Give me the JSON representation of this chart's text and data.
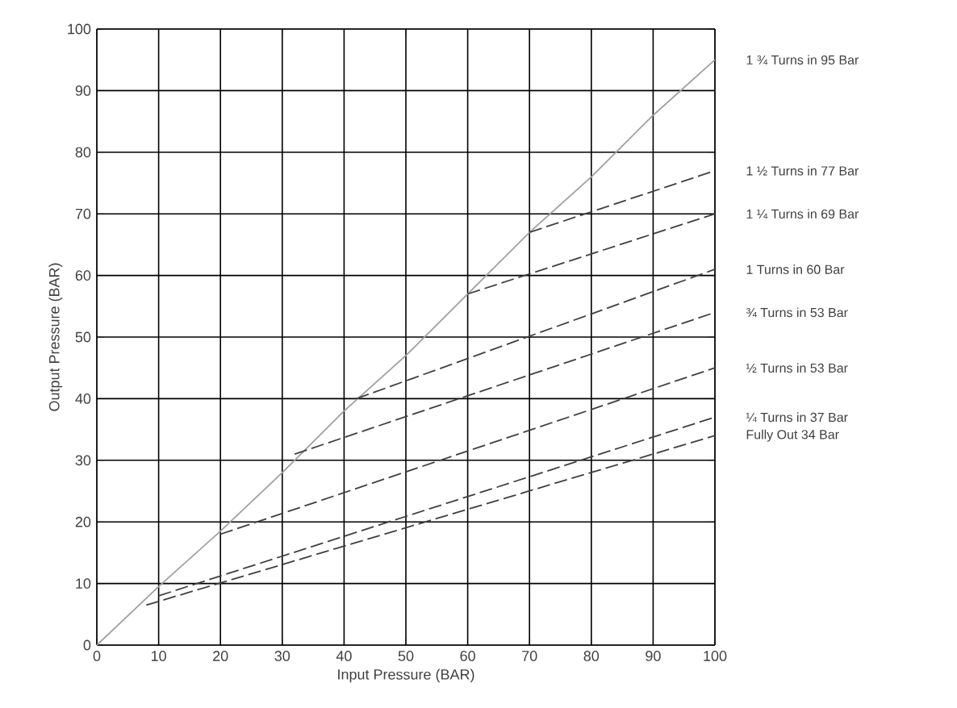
{
  "chart_data": {
    "type": "line",
    "xlabel": "Input Pressure (BAR)",
    "ylabel": "Output Pressure (BAR)",
    "xlim": [
      0,
      100
    ],
    "ylim": [
      0,
      100
    ],
    "xticks": [
      0,
      10,
      20,
      30,
      40,
      50,
      60,
      70,
      80,
      90,
      100
    ],
    "yticks": [
      0,
      10,
      20,
      30,
      40,
      50,
      60,
      70,
      80,
      90,
      100
    ],
    "grid": true,
    "marker": "none",
    "series": [
      {
        "name": "1 ¾ Turns in 95 Bar",
        "color": "#a0a0a0",
        "line_style": "solid",
        "x": [
          0,
          10,
          20,
          30,
          40,
          50,
          60,
          70,
          80,
          90,
          100
        ],
        "values": [
          0,
          9.5,
          18.5,
          28,
          38,
          47,
          57,
          67,
          76,
          86,
          95
        ]
      },
      {
        "name": "1 ½ Turns in 77 Bar",
        "color": "#404040",
        "line_style": "dashed",
        "x": [
          70,
          100
        ],
        "values": [
          67,
          77
        ]
      },
      {
        "name": "1 ¼ Turns in 69 Bar",
        "color": "#404040",
        "line_style": "dashed",
        "x": [
          60,
          100
        ],
        "values": [
          57,
          70
        ]
      },
      {
        "name": "1 Turns in 60 Bar",
        "color": "#404040",
        "line_style": "dashed",
        "x": [
          42,
          100
        ],
        "values": [
          40,
          61
        ]
      },
      {
        "name": "¾ Turns in 53 Bar",
        "color": "#404040",
        "line_style": "dashed",
        "x": [
          32,
          100
        ],
        "values": [
          31,
          54
        ]
      },
      {
        "name": "½ Turns in 53 Bar",
        "color": "#404040",
        "line_style": "dashed",
        "x": [
          20,
          100
        ],
        "values": [
          18,
          45
        ]
      },
      {
        "name": "¼ Turns in 37 Bar",
        "color": "#404040",
        "line_style": "dashed",
        "x": [
          10,
          100
        ],
        "values": [
          8,
          37
        ]
      },
      {
        "name": "Fully Out 34 Bar",
        "color": "#404040",
        "line_style": "dashed",
        "x": [
          8,
          100
        ],
        "values": [
          6.5,
          34
        ]
      }
    ]
  }
}
